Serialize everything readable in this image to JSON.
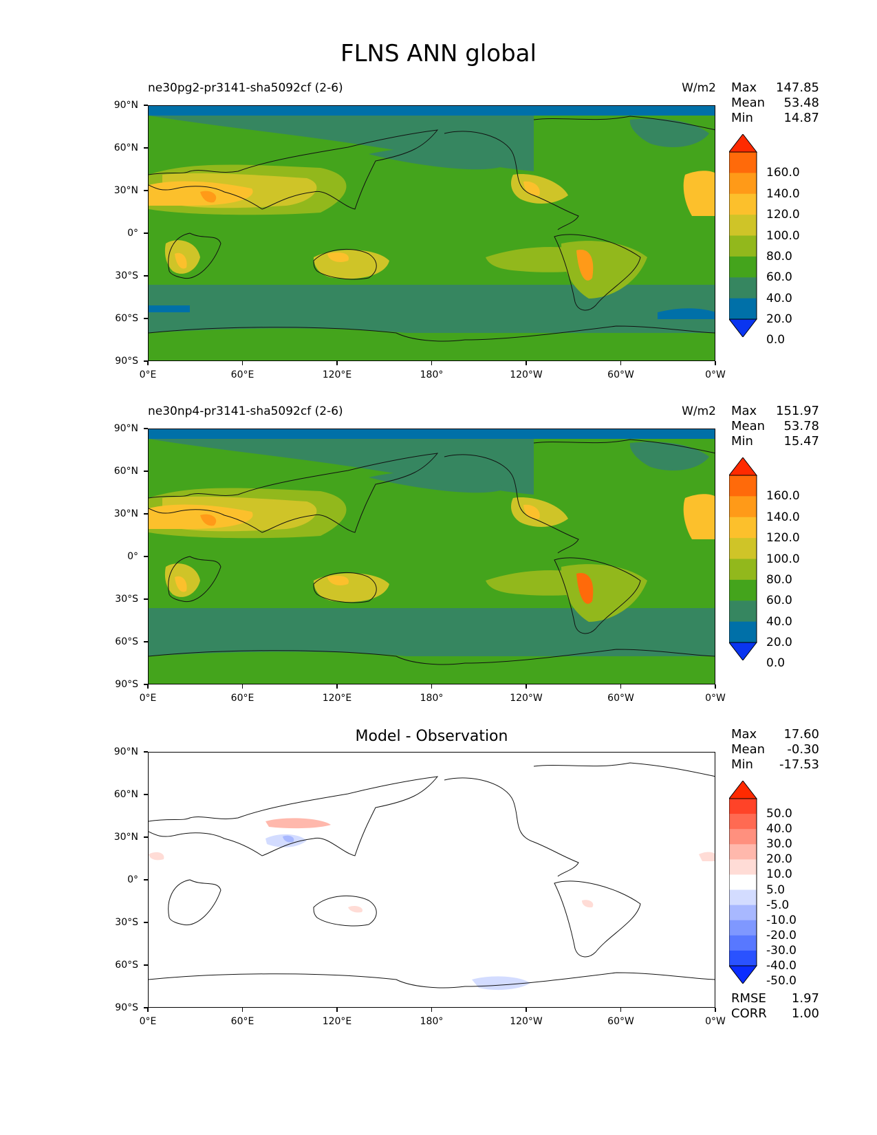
{
  "title": "FLNS ANN global",
  "lat_labels": [
    "90°N",
    "60°N",
    "30°N",
    "0°",
    "30°S",
    "60°S",
    "90°S"
  ],
  "lon_labels": [
    "0°E",
    "60°E",
    "120°E",
    "180°",
    "120°W",
    "60°W",
    "0°W"
  ],
  "panels": [
    {
      "title_left": "ne30pg2-pr3141-sha5092cf (2-6)",
      "units": "W/m2",
      "stats": [
        {
          "label": "Max",
          "value": "147.85"
        },
        {
          "label": "Mean",
          "value": "53.48"
        },
        {
          "label": "Min",
          "value": "14.87"
        }
      ],
      "colorbar_labels": [
        "160.0",
        "140.0",
        "120.0",
        "100.0",
        "80.0",
        "60.0",
        "40.0",
        "20.0",
        "0.0"
      ]
    },
    {
      "title_left": "ne30np4-pr3141-sha5092cf (2-6)",
      "units": "W/m2",
      "stats": [
        {
          "label": "Max",
          "value": "151.97"
        },
        {
          "label": "Mean",
          "value": "53.78"
        },
        {
          "label": "Min",
          "value": "15.47"
        }
      ],
      "colorbar_labels": [
        "160.0",
        "140.0",
        "120.0",
        "100.0",
        "80.0",
        "60.0",
        "40.0",
        "20.0",
        "0.0"
      ]
    },
    {
      "title_center": "Model - Observation",
      "stats": [
        {
          "label": "Max",
          "value": "17.60"
        },
        {
          "label": "Mean",
          "value": "-0.30"
        },
        {
          "label": "Min",
          "value": "-17.53"
        }
      ],
      "colorbar_labels": [
        "50.0",
        "40.0",
        "30.0",
        "20.0",
        "10.0",
        "5.0",
        "-5.0",
        "-10.0",
        "-20.0",
        "-30.0",
        "-40.0",
        "-50.0"
      ],
      "metrics": [
        {
          "label": "RMSE",
          "value": "1.97"
        },
        {
          "label": "CORR",
          "value": "1.00"
        }
      ]
    }
  ],
  "chart_data": [
    {
      "type": "heatmap",
      "xlim": [
        "0°E",
        "0°W"
      ],
      "ylim": [
        "90°S",
        "90°N"
      ],
      "colorbar": {
        "levels": [
          0,
          20,
          40,
          60,
          80,
          100,
          120,
          140,
          160
        ],
        "colors": [
          "#0a35f0",
          "#0070a8",
          "#368660",
          "#44a41c",
          "#92b81c",
          "#cfc428",
          "#fcc02c",
          "#ff9a18",
          "#ff6a0a",
          "#ff2a00"
        ],
        "extend": "both"
      },
      "stats": {
        "max": 147.85,
        "mean": 53.48,
        "min": 14.87
      },
      "units": "W/m2"
    },
    {
      "type": "heatmap",
      "xlim": [
        "0°E",
        "0°W"
      ],
      "ylim": [
        "90°S",
        "90°N"
      ],
      "colorbar": {
        "levels": [
          0,
          20,
          40,
          60,
          80,
          100,
          120,
          140,
          160
        ],
        "colors": [
          "#0a35f0",
          "#0070a8",
          "#368660",
          "#44a41c",
          "#92b81c",
          "#cfc428",
          "#fcc02c",
          "#ff9a18",
          "#ff6a0a",
          "#ff2a00"
        ],
        "extend": "both"
      },
      "stats": {
        "max": 151.97,
        "mean": 53.78,
        "min": 15.47
      },
      "units": "W/m2"
    },
    {
      "type": "heatmap",
      "xlim": [
        "0°E",
        "0°W"
      ],
      "ylim": [
        "90°S",
        "90°N"
      ],
      "colorbar": {
        "levels": [
          -50,
          -40,
          -30,
          -20,
          -10,
          -5,
          5,
          10,
          20,
          30,
          40,
          50
        ],
        "colors": [
          "#0a2cff",
          "#2a52ff",
          "#5878ff",
          "#7f98ff",
          "#a8b8ff",
          "#d3dcff",
          "#ffffff",
          "#ffdcd6",
          "#ffb8ac",
          "#ff907e",
          "#ff6a52",
          "#ff4328",
          "#ff2a00"
        ],
        "extend": "both"
      },
      "stats": {
        "max": 17.6,
        "mean": -0.3,
        "min": -17.53
      },
      "metrics": {
        "rmse": 1.97,
        "corr": 1.0
      }
    }
  ]
}
